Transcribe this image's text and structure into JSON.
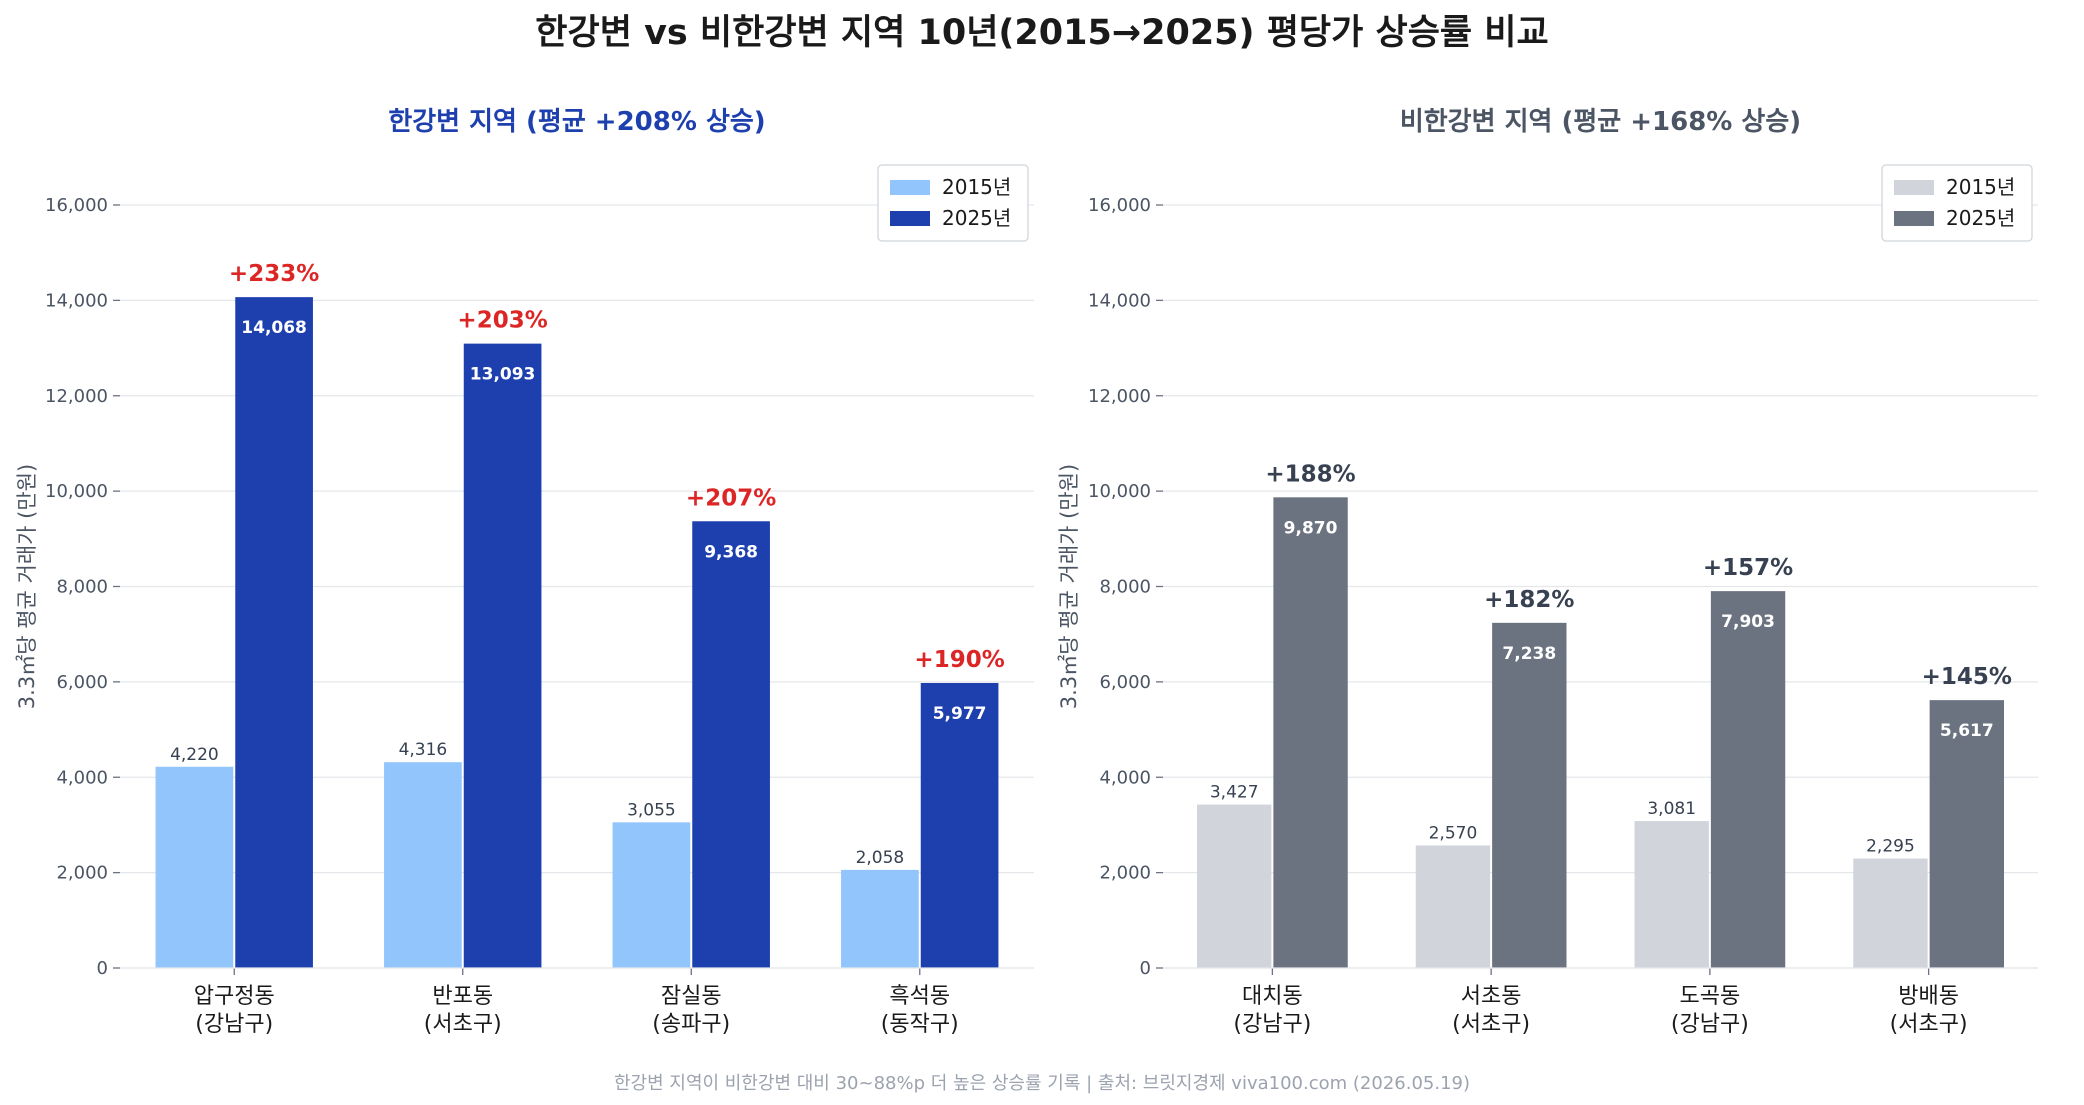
{
  "title": "한강변 vs 비한강변 지역 10년(2015→2025) 평당가 상승률 비교",
  "footer": "한강변 지역이 비한강변 대비 30~88%p 더 높은 상승률 기록  |  출처: 브릿지경제 viva100.com (2026.05.19)",
  "chart_data": [
    {
      "type": "bar",
      "title": "한강변 지역 (평균 +208% 상승)",
      "title_color": "#1e40af",
      "ylabel": "3.3㎡당 평균 거래가 (만원)",
      "ylim": [
        0,
        16000
      ],
      "yticks": [
        0,
        2000,
        4000,
        6000,
        8000,
        10000,
        12000,
        14000,
        16000
      ],
      "ytick_labels": [
        "0",
        "2,000",
        "4,000",
        "6,000",
        "8,000",
        "10,000",
        "12,000",
        "14,000",
        "16,000"
      ],
      "grid": true,
      "legend_position": "top-right",
      "categories": [
        "압구정동\n(강남구)",
        "반포동\n(서초구)",
        "잠실동\n(송파구)",
        "흑석동\n(동작구)"
      ],
      "series": [
        {
          "name": "2015년",
          "color": "#93c5fd",
          "values": [
            4220,
            4316,
            3055,
            2058
          ],
          "value_labels": [
            "4,220",
            "4,316",
            "3,055",
            "2,058"
          ]
        },
        {
          "name": "2025년",
          "color": "#1e40af",
          "values": [
            14068,
            13093,
            9368,
            5977
          ],
          "value_labels": [
            "14,068",
            "13,093",
            "9,368",
            "5,977"
          ]
        }
      ],
      "growth_labels": [
        "+233%",
        "+203%",
        "+207%",
        "+190%"
      ],
      "growth_color": "#dc2626"
    },
    {
      "type": "bar",
      "title": "비한강변 지역 (평균 +168% 상승)",
      "title_color": "#4b5563",
      "ylabel": "3.3㎡당 평균 거래가 (만원)",
      "ylim": [
        0,
        16000
      ],
      "yticks": [
        0,
        2000,
        4000,
        6000,
        8000,
        10000,
        12000,
        14000,
        16000
      ],
      "ytick_labels": [
        "0",
        "2,000",
        "4,000",
        "6,000",
        "8,000",
        "10,000",
        "12,000",
        "14,000",
        "16,000"
      ],
      "grid": true,
      "legend_position": "top-right",
      "categories": [
        "대치동\n(강남구)",
        "서초동\n(서초구)",
        "도곡동\n(강남구)",
        "방배동\n(서초구)"
      ],
      "series": [
        {
          "name": "2015년",
          "color": "#d1d5db",
          "values": [
            3427,
            2570,
            3081,
            2295
          ],
          "value_labels": [
            "3,427",
            "2,570",
            "3,081",
            "2,295"
          ]
        },
        {
          "name": "2025년",
          "color": "#6b7280",
          "values": [
            9870,
            7238,
            7903,
            5617
          ],
          "value_labels": [
            "9,870",
            "7,238",
            "7,903",
            "5,617"
          ]
        }
      ],
      "growth_labels": [
        "+188%",
        "+182%",
        "+157%",
        "+145%"
      ],
      "growth_color": "#374151"
    }
  ]
}
